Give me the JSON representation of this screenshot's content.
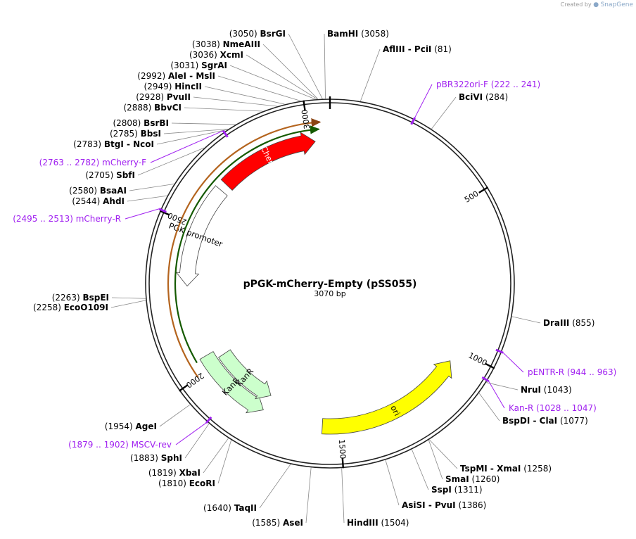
{
  "credit": {
    "prefix": "Created by",
    "brand": "SnapGene"
  },
  "plasmid": {
    "name": "pPGK-mCherry-Empty (pSS055)",
    "length_label": "3070 bp",
    "length": 3070
  },
  "ticks": [
    {
      "pos": 500,
      "label": "500"
    },
    {
      "pos": 1000,
      "label": "1000"
    },
    {
      "pos": 1500,
      "label": "1500"
    },
    {
      "pos": 2000,
      "label": "2000"
    },
    {
      "pos": 2500,
      "label": "2500"
    },
    {
      "pos": 3000,
      "label": "3000"
    }
  ],
  "features": [
    {
      "id": "ori",
      "label": "ori",
      "start": 2185,
      "end": 3260,
      "direction": "rev",
      "color": "#ffff00",
      "lane": 2
    },
    {
      "id": "mcherry",
      "label": "mCherry",
      "start": 5585,
      "end": 6305,
      "direction": "fwd",
      "color": "#ff0000",
      "lane": 2
    },
    {
      "id": "pgk",
      "label": "PGK promoter",
      "start": 4790,
      "end": 5530,
      "direction": "rev",
      "color": "#ffffff",
      "lane": 2
    },
    {
      "id": "kanr1",
      "label": "KanR",
      "start": 3700,
      "end": 4270,
      "direction": "rev",
      "color": "#ccffcc",
      "lane": 2
    },
    {
      "id": "kanr2",
      "label": "KanR",
      "start": 3700,
      "end": 4210,
      "direction": "rev",
      "color": "#ccffcc",
      "lane": 1
    }
  ],
  "sites": [
    {
      "name": "BsrGI",
      "num": "(3050)",
      "side": "left",
      "pos": 3050
    },
    {
      "name": "NmeAIII",
      "num": "(3038)",
      "side": "left",
      "pos": 3038
    },
    {
      "name": "XcmI",
      "num": "(3036)",
      "side": "left",
      "pos": 3036
    },
    {
      "name": "SgrAI",
      "num": "(3031)",
      "side": "left",
      "pos": 3031
    },
    {
      "name": "AleI - MslI",
      "num": "(2992)",
      "side": "left",
      "pos": 2992
    },
    {
      "name": "HincII",
      "num": "(2949)",
      "side": "left",
      "pos": 2949
    },
    {
      "name": "PvuII",
      "num": "(2928)",
      "side": "left",
      "pos": 2928
    },
    {
      "name": "BbvCI",
      "num": "(2888)",
      "side": "left",
      "pos": 2888
    },
    {
      "name": "BsrBI",
      "num": "(2808)",
      "side": "left",
      "pos": 2808
    },
    {
      "name": "BbsI",
      "num": "(2785)",
      "side": "left",
      "pos": 2785
    },
    {
      "name": "BtgI - NcoI",
      "num": "(2783)",
      "side": "left",
      "pos": 2783
    },
    {
      "name": "SbfI",
      "num": "(2705)",
      "side": "left",
      "pos": 2705
    },
    {
      "name": "BsaAI",
      "num": "(2580)",
      "side": "left",
      "pos": 2580
    },
    {
      "name": "AhdI",
      "num": "(2544)",
      "side": "left",
      "pos": 2544
    },
    {
      "name": "BspEI",
      "num": "(2263)",
      "side": "left",
      "pos": 2263
    },
    {
      "name": "EcoO109I",
      "num": "(2258)",
      "side": "left",
      "pos": 2258
    },
    {
      "name": "AgeI",
      "num": "(1954)",
      "side": "left",
      "pos": 1954
    },
    {
      "name": "SphI",
      "num": "(1883)",
      "side": "left",
      "pos": 1883
    },
    {
      "name": "XbaI",
      "num": "(1819)",
      "side": "left",
      "pos": 1819
    },
    {
      "name": "EcoRI",
      "num": "(1810)",
      "side": "left",
      "pos": 1810
    },
    {
      "name": "TaqII",
      "num": "(1640)",
      "side": "left",
      "pos": 1640
    },
    {
      "name": "AseI",
      "num": "(1585)",
      "side": "left",
      "pos": 1585
    },
    {
      "name": "BamHI",
      "num": "(3058)",
      "side": "right",
      "pos": 3058
    },
    {
      "name": "AflIII - PciI",
      "num": "(81)",
      "side": "right",
      "pos": 81
    },
    {
      "name": "BciVI",
      "num": "(284)",
      "side": "right",
      "pos": 284
    },
    {
      "name": "DraIII",
      "num": "(855)",
      "side": "right",
      "pos": 855
    },
    {
      "name": "NruI",
      "num": "(1043)",
      "side": "right",
      "pos": 1043
    },
    {
      "name": "BspDI - ClaI",
      "num": "(1077)",
      "side": "right",
      "pos": 1077
    },
    {
      "name": "TspMI - XmaI",
      "num": "(1258)",
      "side": "right",
      "pos": 1258
    },
    {
      "name": "SmaI",
      "num": "(1260)",
      "side": "right",
      "pos": 1260
    },
    {
      "name": "SspI",
      "num": "(1311)",
      "side": "right",
      "pos": 1311
    },
    {
      "name": "AsiSI - PvuI",
      "num": "(1386)",
      "side": "right",
      "pos": 1386
    },
    {
      "name": "HindIII",
      "num": "(1504)",
      "side": "right",
      "pos": 1504
    }
  ],
  "primers": [
    {
      "name": "pBR322ori-F",
      "range": "(222 .. 241)",
      "side": "right",
      "pos": 231
    },
    {
      "name": "mCherry-F",
      "range": "(2763 .. 2782)",
      "side": "left",
      "pos": 2772
    },
    {
      "name": "mCherry-R",
      "range": "(2495 .. 2513)",
      "side": "left",
      "pos": 2504
    },
    {
      "name": "pENTR-R",
      "range": "(944 .. 963)",
      "side": "right",
      "pos": 953
    },
    {
      "name": "Kan-R",
      "range": "(1028 .. 1047)",
      "side": "right",
      "pos": 1037
    },
    {
      "name": "MSCV-rev",
      "range": "(1879 .. 1902)",
      "side": "left",
      "pos": 1890
    }
  ],
  "primer_color": "#a020f0"
}
